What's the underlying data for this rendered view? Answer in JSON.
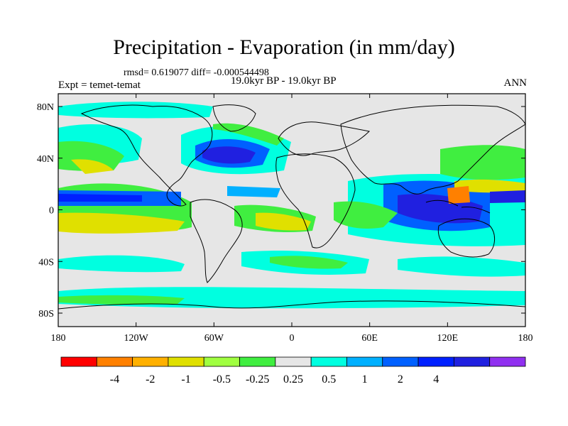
{
  "title": "Precipitation - Evaporation (in mm/day)",
  "stats": "rmsd= 0.619077 diff= -0.000544498",
  "period": "19.0kyr BP - 19.0kyr BP",
  "expt": "Expt = temet-temat",
  "season": "ANN",
  "axes": {
    "lon_ticks": [
      {
        "value": -180,
        "label": "180"
      },
      {
        "value": -120,
        "label": "120W"
      },
      {
        "value": -60,
        "label": "60W"
      },
      {
        "value": 0,
        "label": "0"
      },
      {
        "value": 60,
        "label": "60E"
      },
      {
        "value": 120,
        "label": "120E"
      },
      {
        "value": 180,
        "label": "180"
      }
    ],
    "lat_ticks": [
      {
        "value": 80,
        "label": "80N"
      },
      {
        "value": 40,
        "label": "40N"
      },
      {
        "value": 0,
        "label": "0"
      },
      {
        "value": -40,
        "label": "40S"
      },
      {
        "value": -80,
        "label": "80S"
      }
    ],
    "lon_range": [
      -180,
      180
    ],
    "lat_range": [
      -90,
      90
    ]
  },
  "colorbar": {
    "colors": [
      "#ff0000",
      "#ff8000",
      "#ffb000",
      "#e0e000",
      "#a0ff40",
      "#40ee40",
      "#e6e6e6",
      "#00ffe0",
      "#00b0ff",
      "#0060ff",
      "#0020ff",
      "#2020e0",
      "#9030f0"
    ],
    "labels": [
      "-4",
      "-2",
      "-1",
      "-0.5",
      "-0.25",
      "0.25",
      "0.5",
      "1",
      "2",
      "4"
    ]
  },
  "colors": {
    "background": "#e6e6e6",
    "coast": "#000000"
  }
}
